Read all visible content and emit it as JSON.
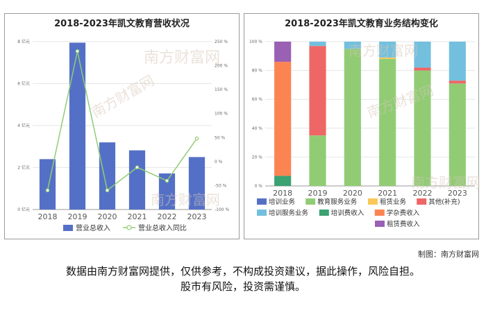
{
  "chart_data": [
    {
      "type": "bar",
      "title": "2018-2023年凯文教育营收状况",
      "categories": [
        "2018",
        "2019",
        "2020",
        "2021",
        "2022",
        "2023"
      ],
      "series": [
        {
          "name": "营业总收入",
          "type": "bar",
          "axis": "left",
          "values": [
            2.4,
            7.95,
            3.2,
            2.82,
            1.72,
            2.5
          ],
          "color": "#5470c6"
        },
        {
          "name": "营业总收入同比",
          "type": "line",
          "axis": "right",
          "values": [
            -60,
            230,
            -60,
            -12,
            -40,
            48
          ],
          "color": "#91cc75"
        }
      ],
      "left_axis": {
        "ylim": [
          0,
          8
        ],
        "ticks": [
          0,
          2,
          4,
          6,
          8
        ],
        "tick_labels": [
          "0 亿元",
          "2 亿元",
          "4 亿元",
          "6 亿元",
          "8 亿元"
        ]
      },
      "right_axis": {
        "ylim": [
          -100,
          250
        ],
        "ticks": [
          -100,
          -50,
          0,
          50,
          100,
          150,
          200,
          250
        ],
        "tick_labels": [
          "-100 %",
          "-50 %",
          "0 %",
          "50 %",
          "100 %",
          "150 %",
          "200 %",
          "250 %"
        ]
      },
      "grid": true,
      "legend_position": "bottom"
    },
    {
      "type": "bar",
      "stacked": true,
      "title": "2018-2023年凯文教育业务结构变化",
      "categories": [
        "2018",
        "2019",
        "2020",
        "2021",
        "2022",
        "2023"
      ],
      "series": [
        {
          "name": "培训业务",
          "values": [
            0,
            0,
            0,
            0,
            0,
            0
          ],
          "color": "#5470c6"
        },
        {
          "name": "教育服务业务",
          "values": [
            0,
            35,
            95,
            88,
            80,
            71
          ],
          "color": "#91cc75"
        },
        {
          "name": "租赁业务",
          "values": [
            0,
            0,
            0,
            1,
            0,
            0
          ],
          "color": "#fac858"
        },
        {
          "name": "其他(补充)",
          "values": [
            0,
            62,
            0,
            0,
            2,
            2
          ],
          "color": "#ee6666"
        },
        {
          "name": "培训服务业务",
          "values": [
            0,
            3,
            5,
            11,
            18,
            27
          ],
          "color": "#73c0de"
        },
        {
          "name": "培训费收入",
          "values": [
            7,
            0,
            0,
            0,
            0,
            0
          ],
          "color": "#3ba272"
        },
        {
          "name": "学杂费收入",
          "values": [
            79,
            0,
            0,
            0,
            0,
            0
          ],
          "color": "#fc8452"
        },
        {
          "name": "租赁费收入",
          "values": [
            14,
            0,
            0,
            0,
            0,
            0
          ],
          "color": "#9a60b4"
        }
      ],
      "ylim": [
        0,
        100
      ],
      "ticks": [
        0,
        20,
        40,
        60,
        80,
        100
      ],
      "tick_labels": [
        "0 %",
        "20 %",
        "40 %",
        "60 %",
        "80 %",
        "100 %"
      ],
      "grid": true,
      "legend_position": "bottom"
    }
  ],
  "footer": {
    "credit": "制图：南方财富网",
    "disclaimer_line1": "数据由南方财富网提供，仅供参考，不构成投资建议，据此操作，风险自担。",
    "disclaimer_line2": "股市有风险，投资需谨慎。"
  }
}
